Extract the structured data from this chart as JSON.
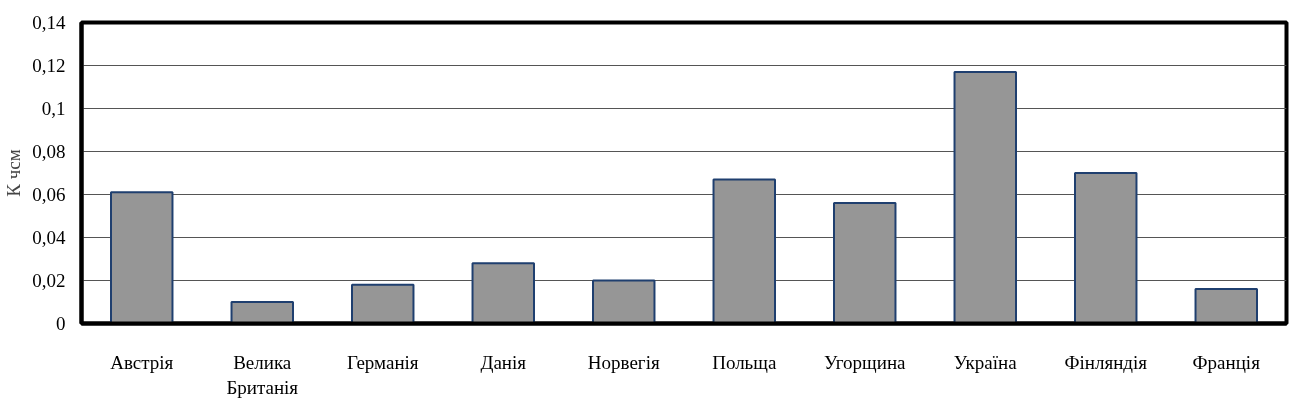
{
  "chart_data": {
    "type": "bar",
    "ylabel": "К чсм",
    "categories": [
      "Австрія",
      "Велика Британія",
      "Германія",
      "Данія",
      "Норвегія",
      "Польща",
      "Угорщина",
      "Україна",
      "Фінляндія",
      "Франція"
    ],
    "values": [
      0.061,
      0.01,
      0.018,
      0.028,
      0.02,
      0.067,
      0.056,
      0.117,
      0.07,
      0.016
    ],
    "color": "#969696",
    "ylim": [
      0,
      0.14
    ],
    "yticks": [
      {
        "value": 0,
        "label": "0"
      },
      {
        "value": 0.02,
        "label": "0,02"
      },
      {
        "value": 0.04,
        "label": "0,04"
      },
      {
        "value": 0.06,
        "label": "0,06"
      },
      {
        "value": 0.08,
        "label": "0,08"
      },
      {
        "value": 0.1,
        "label": "0,1"
      },
      {
        "value": 0.12,
        "label": "0,12"
      },
      {
        "value": 0.14,
        "label": "0,14"
      }
    ],
    "grid": "y"
  }
}
